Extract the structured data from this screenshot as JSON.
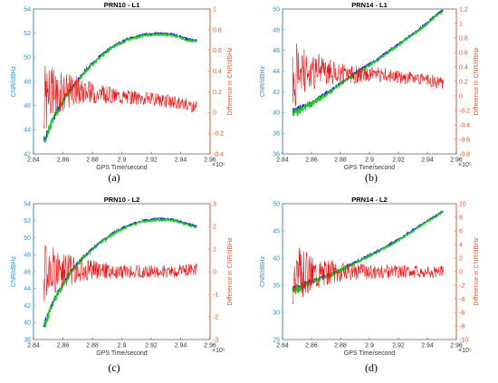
{
  "colors": {
    "left_axis": "#2f8fc9",
    "right_axis": "#e8552a",
    "ch1": "#1f1fd6",
    "ch2": "#1fcf1f",
    "diff": "#ee1111"
  },
  "chart_data": [
    {
      "type": "line",
      "title": "PRN10 - L1",
      "panel_label": "(a)",
      "xlabel": "GPS Time/second",
      "x_exponent": "×10⁵",
      "ylabel_left": "CNR/dBHz",
      "ylabel_right": "Difference in CNR/dBHz",
      "xlim": [
        2.84,
        2.96
      ],
      "ylim_left": [
        42,
        54
      ],
      "ylim_right": [
        -0.4,
        1.0
      ],
      "xticks": [
        "2.84",
        "2.86",
        "2.88",
        "2.9",
        "2.92",
        "2.94",
        "2.96"
      ],
      "yticks_left": [
        "42",
        "44",
        "46",
        "48",
        "50",
        "52",
        "54"
      ],
      "yticks_right": [
        "-0.4",
        "-0.2",
        "0",
        "0.2",
        "0.4",
        "0.6",
        "0.8",
        "1"
      ],
      "series": [
        {
          "axis": "left",
          "values": [
            [
              2.847,
              43.0
            ],
            [
              2.855,
              45.3
            ],
            [
              2.865,
              47.2
            ],
            [
              2.875,
              48.8
            ],
            [
              2.885,
              50.0
            ],
            [
              2.895,
              50.9
            ],
            [
              2.905,
              51.5
            ],
            [
              2.915,
              51.8
            ],
            [
              2.925,
              51.9
            ],
            [
              2.935,
              51.8
            ],
            [
              2.945,
              51.4
            ],
            [
              2.951,
              51.3
            ]
          ]
        },
        {
          "axis": "right",
          "values": [
            [
              2.847,
              0.15
            ],
            [
              2.865,
              0.22
            ],
            [
              2.885,
              0.18
            ],
            [
              2.905,
              0.15
            ],
            [
              2.925,
              0.12
            ],
            [
              2.945,
              0.08
            ],
            [
              2.951,
              0.05
            ]
          ]
        }
      ]
    },
    {
      "type": "line",
      "title": "PRN14 - L1",
      "panel_label": "(b)",
      "xlabel": "GPS Time/second",
      "x_exponent": "×10⁵",
      "ylabel_left": "CNR/dBHz",
      "ylabel_right": "Difference in CNR/dBHz",
      "xlim": [
        2.84,
        2.96
      ],
      "ylim_left": [
        36,
        50
      ],
      "ylim_right": [
        -0.8,
        1.2
      ],
      "xticks": [
        "2.84",
        "2.86",
        "2.88",
        "2.9",
        "2.92",
        "2.94",
        "2.96"
      ],
      "yticks_left": [
        "36",
        "38",
        "40",
        "42",
        "44",
        "46",
        "48",
        "50"
      ],
      "yticks_right": [
        "-0.8",
        "-0.6",
        "-0.4",
        "-0.2",
        "0",
        "0.2",
        "0.4",
        "0.6",
        "0.8",
        "1",
        "1.2"
      ],
      "series": [
        {
          "axis": "left",
          "values": [
            [
              2.847,
              40.0
            ],
            [
              2.86,
              40.8
            ],
            [
              2.875,
              42.2
            ],
            [
              2.89,
              43.7
            ],
            [
              2.905,
              45.0
            ],
            [
              2.92,
              46.5
            ],
            [
              2.935,
              48.0
            ],
            [
              2.945,
              49.2
            ],
            [
              2.951,
              49.8
            ]
          ]
        },
        {
          "axis": "right",
          "values": [
            [
              2.847,
              0.3
            ],
            [
              2.865,
              0.35
            ],
            [
              2.885,
              0.3
            ],
            [
              2.905,
              0.3
            ],
            [
              2.925,
              0.25
            ],
            [
              2.945,
              0.2
            ],
            [
              2.951,
              0.15
            ]
          ]
        }
      ]
    },
    {
      "type": "line",
      "title": "PRN10 - L2",
      "panel_label": "(c)",
      "xlabel": "GPS Time/second",
      "x_exponent": "×10⁵",
      "ylabel_left": "CNR/dBHz",
      "ylabel_right": "Difference in CNR/dBHz",
      "xlim": [
        2.84,
        2.96
      ],
      "ylim_left": [
        38,
        54
      ],
      "ylim_right": [
        -3,
        3
      ],
      "xticks": [
        "2.84",
        "2.86",
        "2.88",
        "2.9",
        "2.92",
        "2.94",
        "2.96"
      ],
      "yticks_left": [
        "38",
        "40",
        "42",
        "44",
        "46",
        "48",
        "50",
        "52",
        "54"
      ],
      "yticks_right": [
        "-3",
        "-2",
        "-1",
        "0",
        "1",
        "2",
        "3"
      ],
      "series": [
        {
          "axis": "left",
          "values": [
            [
              2.847,
              39.5
            ],
            [
              2.855,
              43.0
            ],
            [
              2.865,
              45.8
            ],
            [
              2.875,
              47.8
            ],
            [
              2.885,
              49.3
            ],
            [
              2.895,
              50.5
            ],
            [
              2.905,
              51.4
            ],
            [
              2.915,
              51.9
            ],
            [
              2.925,
              52.1
            ],
            [
              2.935,
              52.0
            ],
            [
              2.945,
              51.5
            ],
            [
              2.951,
              51.2
            ]
          ]
        },
        {
          "axis": "right",
          "values": [
            [
              2.847,
              0.0
            ],
            [
              2.865,
              0.1
            ],
            [
              2.885,
              0.05
            ],
            [
              2.905,
              0.0
            ],
            [
              2.925,
              0.0
            ],
            [
              2.945,
              0.05
            ],
            [
              2.951,
              0.1
            ]
          ]
        }
      ]
    },
    {
      "type": "line",
      "title": "PRN14 - L2",
      "panel_label": "(d)",
      "xlabel": "GPS Time/second",
      "x_exponent": "×10⁵",
      "ylabel_left": "CNR/dBHz",
      "ylabel_right": "Difference in CNR/dBHz",
      "xlim": [
        2.84,
        2.96
      ],
      "ylim_left": [
        25,
        50
      ],
      "ylim_right": [
        -10,
        10
      ],
      "xticks": [
        "2.84",
        "2.86",
        "2.88",
        "2.9",
        "2.92",
        "2.94",
        "2.96"
      ],
      "yticks_left": [
        "25",
        "30",
        "35",
        "40",
        "45",
        "50"
      ],
      "yticks_right": [
        "-10",
        "-8",
        "-6",
        "-4",
        "-2",
        "0",
        "2",
        "4",
        "6",
        "8",
        "10"
      ],
      "series": [
        {
          "axis": "left",
          "values": [
            [
              2.847,
              34.0
            ],
            [
              2.86,
              35.5
            ],
            [
              2.875,
              37.0
            ],
            [
              2.89,
              39.0
            ],
            [
              2.905,
              41.0
            ],
            [
              2.92,
              43.2
            ],
            [
              2.935,
              45.8
            ],
            [
              2.945,
              47.5
            ],
            [
              2.951,
              48.5
            ]
          ]
        },
        {
          "axis": "right",
          "values": [
            [
              2.847,
              0.0
            ],
            [
              2.87,
              0.0
            ],
            [
              2.89,
              0.0
            ],
            [
              2.91,
              0.0
            ],
            [
              2.93,
              0.0
            ],
            [
              2.951,
              0.0
            ]
          ]
        }
      ]
    }
  ]
}
